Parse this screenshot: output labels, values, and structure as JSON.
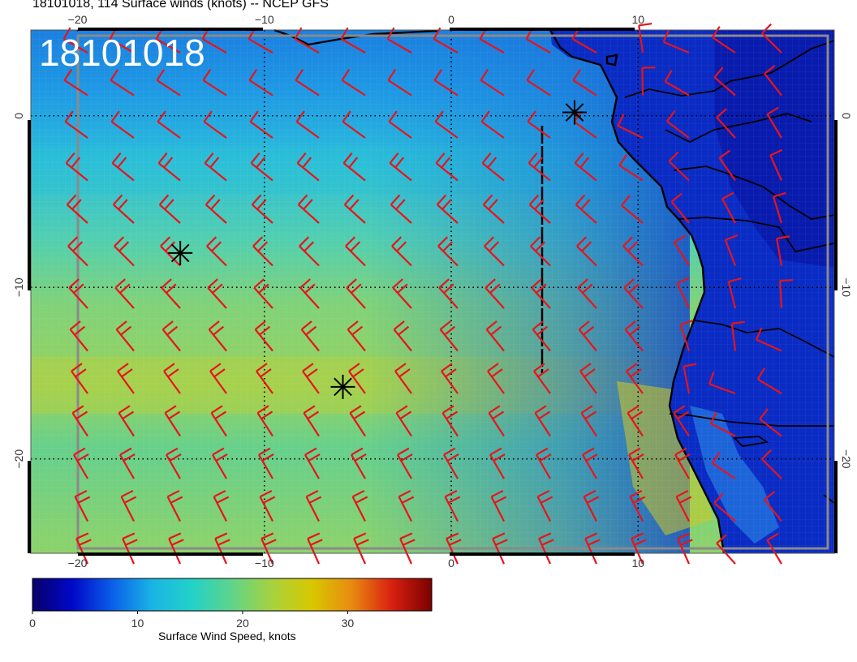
{
  "title": "18101018, 114 Surface winds (knots) -- NCEP GFS",
  "stamp": "18101018",
  "map": {
    "lon_range": [
      -22.5,
      20.5
    ],
    "lat_range": [
      -25.5,
      5.0
    ],
    "lon_ticks": [
      {
        "value": -20,
        "label": "−20"
      },
      {
        "value": -10,
        "label": "−10"
      },
      {
        "value": 0,
        "label": "0"
      },
      {
        "value": 10,
        "label": "10"
      }
    ],
    "lat_ticks": [
      {
        "value": 0,
        "label": "0"
      },
      {
        "value": -10,
        "label": "−10"
      },
      {
        "value": -20,
        "label": "−20"
      }
    ],
    "grid_lines": "dotted",
    "colors": {
      "barb": "#e8141a",
      "coast": "#000000",
      "grey_box": "#8a8a8a"
    },
    "markers": [
      {
        "name": "star-marker-1",
        "lon": -14.5,
        "lat": -8.0
      },
      {
        "name": "star-marker-2",
        "lon": -5.8,
        "lat": -15.8
      },
      {
        "name": "star-marker-3",
        "lon": 6.6,
        "lat": 0.2
      }
    ]
  },
  "colorbar": {
    "label": "Surface Wind Speed, knots",
    "ticks": [
      {
        "value": 0,
        "label": "0"
      },
      {
        "value": 10,
        "label": "10"
      },
      {
        "value": 20,
        "label": "20"
      },
      {
        "value": 30,
        "label": "30"
      }
    ],
    "min": 0,
    "max": 38,
    "stops": [
      "#08006a",
      "#0008c8",
      "#0a5fe8",
      "#1ab4e4",
      "#22d2c8",
      "#60d48a",
      "#a6d23e",
      "#d8c800",
      "#e88a10",
      "#d82010",
      "#7a0000"
    ]
  }
}
